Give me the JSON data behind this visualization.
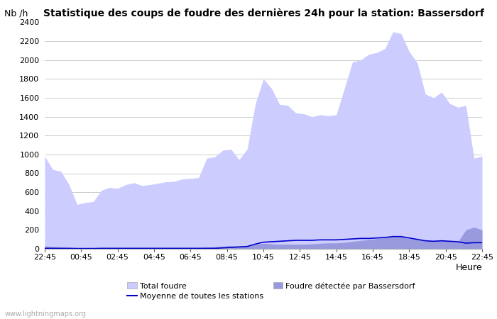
{
  "title": "Statistique des coups de foudre des dernières 24h pour la station: Bassersdorf",
  "xlabel": "Heure",
  "ylabel": "Nb /h",
  "watermark": "www.lightningmaps.org",
  "x_labels": [
    "22:45",
    "00:45",
    "02:45",
    "04:45",
    "06:45",
    "08:45",
    "10:45",
    "12:45",
    "14:45",
    "16:45",
    "18:45",
    "20:45",
    "22:45"
  ],
  "ylim": [
    0,
    2400
  ],
  "yticks": [
    0,
    200,
    400,
    600,
    800,
    1000,
    1200,
    1400,
    1600,
    1800,
    2000,
    2200,
    2400
  ],
  "total_foudre_color": "#ccccff",
  "bassersdorf_color": "#9999dd",
  "moyenne_color": "#0000cc",
  "background_color": "#ffffff",
  "total_foudre": [
    980,
    840,
    820,
    680,
    470,
    490,
    500,
    620,
    650,
    640,
    680,
    700,
    670,
    680,
    695,
    710,
    715,
    740,
    745,
    755,
    960,
    975,
    1045,
    1055,
    945,
    1055,
    1535,
    1800,
    1700,
    1530,
    1520,
    1440,
    1430,
    1400,
    1420,
    1410,
    1420,
    1700,
    1980,
    2000,
    2060,
    2080,
    2120,
    2300,
    2280,
    2090,
    1970,
    1640,
    1600,
    1660,
    1540,
    1500,
    1520,
    960,
    980
  ],
  "bassersdorf": [
    30,
    22,
    18,
    8,
    4,
    4,
    4,
    4,
    4,
    4,
    8,
    8,
    8,
    8,
    8,
    8,
    8,
    12,
    12,
    12,
    18,
    22,
    28,
    32,
    28,
    28,
    45,
    58,
    52,
    48,
    48,
    48,
    48,
    52,
    58,
    62,
    62,
    68,
    78,
    88,
    98,
    108,
    118,
    128,
    128,
    108,
    98,
    82,
    78,
    88,
    78,
    72,
    200,
    230,
    200
  ],
  "moyenne": [
    5,
    5,
    5,
    5,
    3,
    3,
    3,
    5,
    5,
    5,
    5,
    5,
    5,
    5,
    5,
    5,
    5,
    5,
    5,
    5,
    5,
    5,
    10,
    15,
    20,
    25,
    50,
    70,
    75,
    80,
    85,
    90,
    90,
    90,
    95,
    95,
    95,
    100,
    105,
    110,
    110,
    115,
    120,
    130,
    130,
    115,
    100,
    85,
    80,
    85,
    80,
    75,
    60,
    65,
    65
  ]
}
